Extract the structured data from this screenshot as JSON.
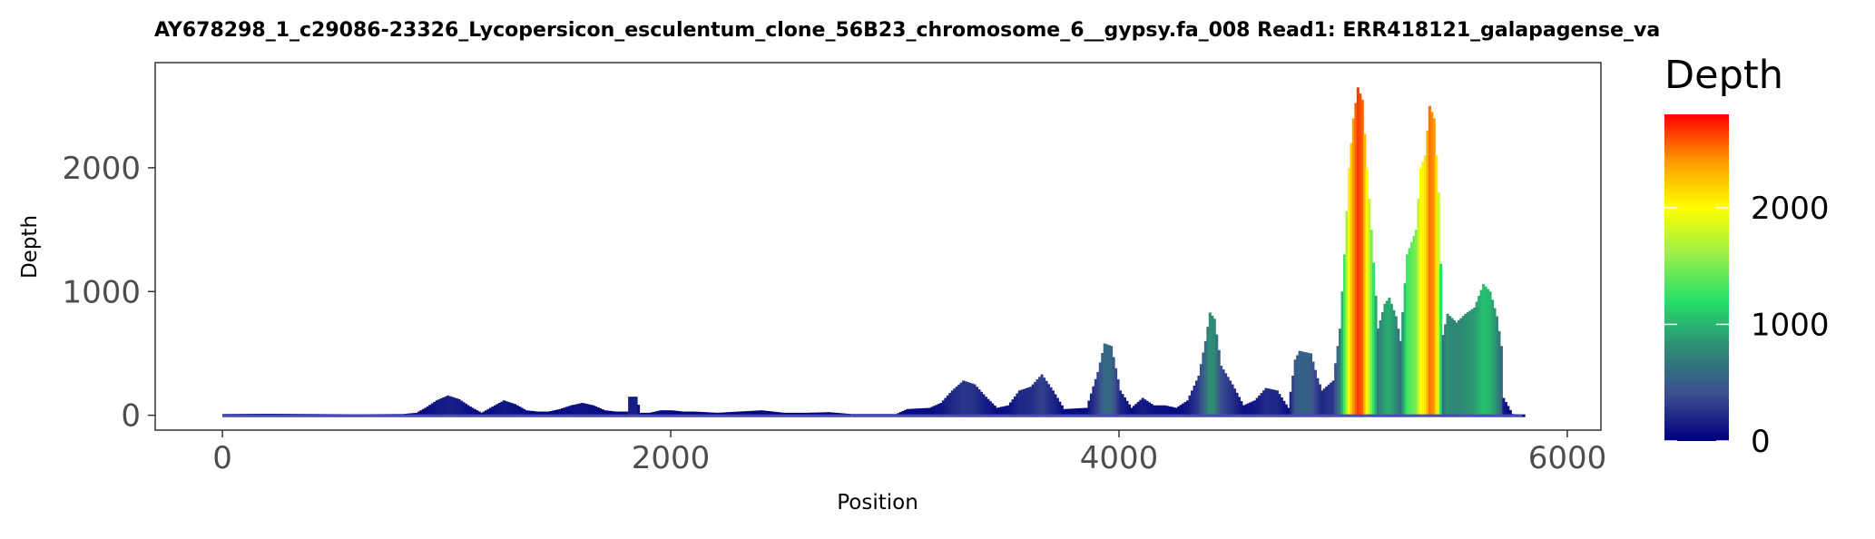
{
  "chart_data": {
    "type": "area",
    "title": "AY678298_1_c29086-23326_Lycopersicon_esculentum_clone_56B23_chromosome_6__gypsy.fa_008   Read1: ERR418121_galapagense_va",
    "xlabel": "Position",
    "ylabel": "Depth",
    "xlim": [
      -300,
      6150
    ],
    "ylim": [
      -120,
      2850
    ],
    "x_ticks": [
      0,
      2000,
      4000,
      6000
    ],
    "y_ticks": [
      0,
      1000,
      2000
    ],
    "x_tick_labels": [
      "0",
      "2000",
      "4000",
      "6000"
    ],
    "y_tick_labels": [
      "0",
      "1000",
      "2000"
    ],
    "grid": false,
    "legend": {
      "title": "Depth",
      "placement": "right",
      "range": [
        0,
        2800
      ],
      "ticks": [
        0,
        1000,
        2000
      ],
      "tick_labels": [
        "0",
        "1000",
        "2000"
      ],
      "gradient_colors": [
        "#00007F",
        "#3B4F8F",
        "#2E8B74",
        "#22E06A",
        "#9AF04A",
        "#FFFF00",
        "#FF9900",
        "#FF0000"
      ]
    },
    "series": [
      {
        "points": [
          [
            0,
            10
          ],
          [
            200,
            12
          ],
          [
            400,
            10
          ],
          [
            600,
            8
          ],
          [
            800,
            10
          ],
          [
            860,
            20
          ],
          [
            900,
            60
          ],
          [
            950,
            120
          ],
          [
            1000,
            160
          ],
          [
            1050,
            130
          ],
          [
            1100,
            70
          ],
          [
            1150,
            20
          ],
          [
            1200,
            70
          ],
          [
            1250,
            120
          ],
          [
            1300,
            90
          ],
          [
            1350,
            40
          ],
          [
            1400,
            30
          ],
          [
            1450,
            30
          ],
          [
            1500,
            50
          ],
          [
            1550,
            80
          ],
          [
            1600,
            100
          ],
          [
            1650,
            80
          ],
          [
            1700,
            40
          ],
          [
            1750,
            30
          ],
          [
            1800,
            30
          ],
          [
            1810,
            150
          ],
          [
            1840,
            150
          ],
          [
            1860,
            20
          ],
          [
            1900,
            20
          ],
          [
            1950,
            40
          ],
          [
            2000,
            40
          ],
          [
            2050,
            30
          ],
          [
            2100,
            30
          ],
          [
            2200,
            20
          ],
          [
            2300,
            30
          ],
          [
            2400,
            40
          ],
          [
            2500,
            20
          ],
          [
            2600,
            20
          ],
          [
            2700,
            25
          ],
          [
            2800,
            10
          ],
          [
            3000,
            10
          ],
          [
            3050,
            50
          ],
          [
            3150,
            60
          ],
          [
            3200,
            100
          ],
          [
            3250,
            200
          ],
          [
            3300,
            280
          ],
          [
            3350,
            250
          ],
          [
            3400,
            150
          ],
          [
            3450,
            60
          ],
          [
            3500,
            80
          ],
          [
            3550,
            200
          ],
          [
            3600,
            230
          ],
          [
            3650,
            330
          ],
          [
            3700,
            200
          ],
          [
            3750,
            50
          ],
          [
            3850,
            60
          ],
          [
            3900,
            350
          ],
          [
            3930,
            580
          ],
          [
            3960,
            560
          ],
          [
            4000,
            200
          ],
          [
            4050,
            60
          ],
          [
            4100,
            140
          ],
          [
            4150,
            80
          ],
          [
            4200,
            80
          ],
          [
            4250,
            60
          ],
          [
            4300,
            120
          ],
          [
            4350,
            320
          ],
          [
            4380,
            600
          ],
          [
            4400,
            830
          ],
          [
            4420,
            780
          ],
          [
            4450,
            400
          ],
          [
            4500,
            250
          ],
          [
            4550,
            80
          ],
          [
            4600,
            120
          ],
          [
            4650,
            220
          ],
          [
            4700,
            200
          ],
          [
            4750,
            60
          ],
          [
            4780,
            450
          ],
          [
            4800,
            520
          ],
          [
            4850,
            500
          ],
          [
            4880,
            300
          ],
          [
            4900,
            200
          ],
          [
            4950,
            280
          ],
          [
            4980,
            700
          ],
          [
            5000,
            1300
          ],
          [
            5020,
            2000
          ],
          [
            5040,
            2400
          ],
          [
            5060,
            2650
          ],
          [
            5080,
            2550
          ],
          [
            5100,
            2000
          ],
          [
            5120,
            1500
          ],
          [
            5150,
            700
          ],
          [
            5180,
            900
          ],
          [
            5200,
            950
          ],
          [
            5230,
            800
          ],
          [
            5250,
            600
          ],
          [
            5280,
            1300
          ],
          [
            5300,
            1400
          ],
          [
            5320,
            1500
          ],
          [
            5340,
            2000
          ],
          [
            5360,
            2100
          ],
          [
            5380,
            2500
          ],
          [
            5400,
            2400
          ],
          [
            5420,
            1800
          ],
          [
            5440,
            650
          ],
          [
            5460,
            820
          ],
          [
            5500,
            750
          ],
          [
            5540,
            820
          ],
          [
            5580,
            870
          ],
          [
            5620,
            1060
          ],
          [
            5650,
            1000
          ],
          [
            5680,
            800
          ],
          [
            5700,
            560
          ],
          [
            5710,
            140
          ],
          [
            5750,
            10
          ],
          [
            5800,
            5
          ]
        ]
      }
    ]
  }
}
